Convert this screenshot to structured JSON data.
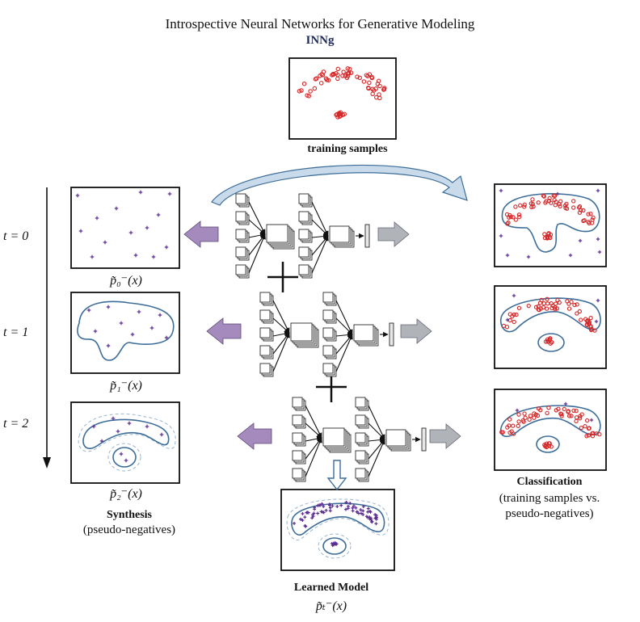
{
  "header": {
    "title": "Introspective Neural Networks for Generative Modeling",
    "subtitle": "INNg"
  },
  "top": {
    "label": "training samples"
  },
  "left": {
    "time_labels": [
      "t = 0",
      "t = 1",
      "t = 2"
    ],
    "dist_labels": [
      "p̃₀⁻(x)",
      "p̃₁⁻(x)",
      "p̃₂⁻(x)"
    ],
    "caption_title": "Synthesis",
    "caption_sub": "(pseudo-negatives)"
  },
  "right": {
    "caption_title": "Classification",
    "caption_sub_line1": "(training samples vs.",
    "caption_sub_line2": "pseudo-negatives)"
  },
  "bottom": {
    "caption_title": "Learned Model",
    "dist_label": "p̃ₜ⁻(x)"
  },
  "colors": {
    "positive": "#d62728",
    "negative": "#5b2c91",
    "boundary": "#3d6d99",
    "arrow_purple": "#a58bbd",
    "arrow_gray": "#b0b4b8",
    "curved_arrow": "#c9dbea"
  }
}
